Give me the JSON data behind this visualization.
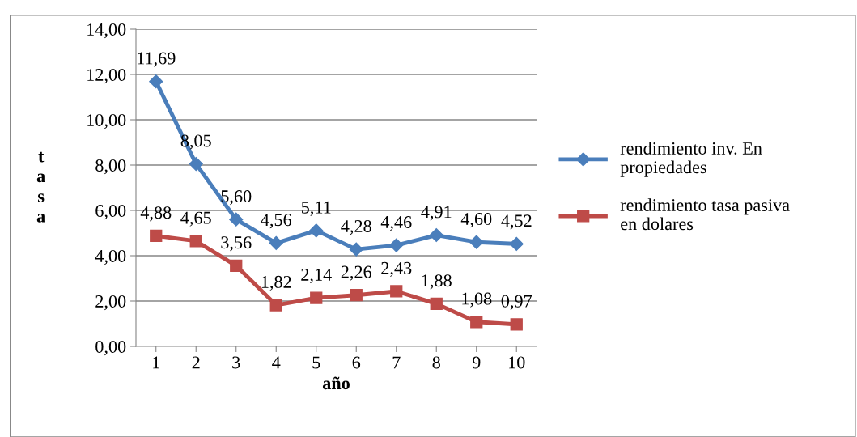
{
  "chart_data": {
    "type": "line",
    "xlabel": "año",
    "ylabel": "tasa",
    "categories": [
      "1",
      "2",
      "3",
      "4",
      "5",
      "6",
      "7",
      "8",
      "9",
      "10"
    ],
    "series": [
      {
        "name": "rendimiento inv. En propiedades",
        "color": "#4a7ebb",
        "marker": "diamond",
        "values": [
          11.69,
          8.05,
          5.6,
          4.56,
          5.11,
          4.28,
          4.46,
          4.91,
          4.6,
          4.52
        ],
        "value_labels": [
          "11,69",
          "8,05",
          "5,60",
          "4,56",
          "5,11",
          "4,28",
          "4,46",
          "4,91",
          "4,60",
          "4,52"
        ]
      },
      {
        "name": "rendimiento tasa pasiva en dolares",
        "color": "#be4b48",
        "marker": "square",
        "values": [
          4.88,
          4.65,
          3.56,
          1.82,
          2.14,
          2.26,
          2.43,
          1.88,
          1.08,
          0.97
        ],
        "value_labels": [
          "4,88",
          "4,65",
          "3,56",
          "1,82",
          "2,14",
          "2,26",
          "2,43",
          "1,88",
          "1,08",
          "0,97"
        ]
      }
    ],
    "ylim": [
      0,
      14
    ],
    "yticks": [
      {
        "value": 0,
        "label": "0,00"
      },
      {
        "value": 2,
        "label": "2,00"
      },
      {
        "value": 4,
        "label": "4,00"
      },
      {
        "value": 6,
        "label": "6,00"
      },
      {
        "value": 8,
        "label": "8,00"
      },
      {
        "value": 10,
        "label": "10,00"
      },
      {
        "value": 12,
        "label": "12,00"
      },
      {
        "value": 14,
        "label": "14,00"
      }
    ],
    "grid": "y",
    "legend": "right"
  }
}
